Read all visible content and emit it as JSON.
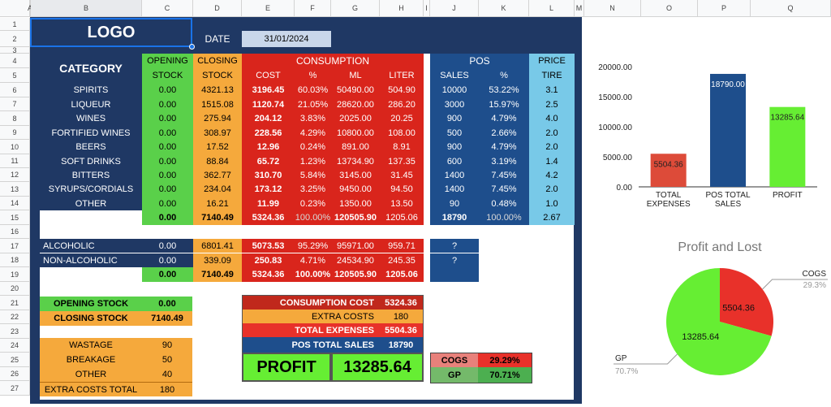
{
  "col_headers": [
    "A",
    "B",
    "C",
    "D",
    "E",
    "F",
    "G",
    "H",
    "I",
    "J",
    "K",
    "L",
    "M",
    "N",
    "O",
    "P",
    "Q"
  ],
  "row_headers": [
    "1",
    "2",
    "3",
    "4",
    "5",
    "6",
    "7",
    "8",
    "9",
    "10",
    "11",
    "12",
    "13",
    "14",
    "15",
    "16",
    "17",
    "18",
    "19",
    "20",
    "21",
    "22",
    "23",
    "24",
    "25",
    "26",
    "27"
  ],
  "header": {
    "logo": "LOGO",
    "date_label": "DATE",
    "date_value": "31/01/2024"
  },
  "table": {
    "h_category": "CATEGORY",
    "h_opening1": "OPENING",
    "h_opening2": "STOCK",
    "h_closing1": "CLOSING",
    "h_closing2": "STOCK",
    "h_consumption": "CONSUMPTION",
    "h_cost": "COST",
    "h_pct": "%",
    "h_ml": "ML",
    "h_liter": "LITER",
    "h_pos": "POS",
    "h_sales": "SALES",
    "h_pos_pct": "%",
    "h_price1": "PRICE",
    "h_price2": "TIRE",
    "rows": [
      {
        "cat": "SPIRITS",
        "open": "0.00",
        "close": "4321.13",
        "cost": "3196.45",
        "pct": "60.03%",
        "ml": "50490.00",
        "liter": "504.90",
        "sales": "10000",
        "spct": "53.22%",
        "price": "3.1"
      },
      {
        "cat": "LIQUEUR",
        "open": "0.00",
        "close": "1515.08",
        "cost": "1120.74",
        "pct": "21.05%",
        "ml": "28620.00",
        "liter": "286.20",
        "sales": "3000",
        "spct": "15.97%",
        "price": "2.5"
      },
      {
        "cat": "WINES",
        "open": "0.00",
        "close": "275.94",
        "cost": "204.12",
        "pct": "3.83%",
        "ml": "2025.00",
        "liter": "20.25",
        "sales": "900",
        "spct": "4.79%",
        "price": "4.0"
      },
      {
        "cat": "FORTIFIED WINES",
        "open": "0.00",
        "close": "308.97",
        "cost": "228.56",
        "pct": "4.29%",
        "ml": "10800.00",
        "liter": "108.00",
        "sales": "500",
        "spct": "2.66%",
        "price": "2.0"
      },
      {
        "cat": "BEERS",
        "open": "0.00",
        "close": "17.52",
        "cost": "12.96",
        "pct": "0.24%",
        "ml": "891.00",
        "liter": "8.91",
        "sales": "900",
        "spct": "4.79%",
        "price": "2.0"
      },
      {
        "cat": "SOFT DRINKS",
        "open": "0.00",
        "close": "88.84",
        "cost": "65.72",
        "pct": "1.23%",
        "ml": "13734.90",
        "liter": "137.35",
        "sales": "600",
        "spct": "3.19%",
        "price": "1.4"
      },
      {
        "cat": "BITTERS",
        "open": "0.00",
        "close": "362.77",
        "cost": "310.70",
        "pct": "5.84%",
        "ml": "3145.00",
        "liter": "31.45",
        "sales": "1400",
        "spct": "7.45%",
        "price": "4.2"
      },
      {
        "cat": "SYRUPS/CORDIALS",
        "open": "0.00",
        "close": "234.04",
        "cost": "173.12",
        "pct": "3.25%",
        "ml": "9450.00",
        "liter": "94.50",
        "sales": "1400",
        "spct": "7.45%",
        "price": "2.0"
      },
      {
        "cat": "OTHER",
        "open": "0.00",
        "close": "16.21",
        "cost": "11.99",
        "pct": "0.23%",
        "ml": "1350.00",
        "liter": "13.50",
        "sales": "90",
        "spct": "0.48%",
        "price": "1.0"
      }
    ],
    "totals": {
      "open": "0.00",
      "close": "7140.49",
      "cost": "5324.36",
      "pct": "100.00%",
      "ml": "120505.90",
      "liter": "1205.06",
      "sales": "18790",
      "spct": "100.00%",
      "price": "2.67"
    }
  },
  "alcohol": {
    "rows": [
      {
        "cat": "ALCOHOLIC",
        "open": "0.00",
        "close": "6801.41",
        "cost": "5073.53",
        "pct": "95.29%",
        "ml": "95971.00",
        "liter": "959.71",
        "pos": "?"
      },
      {
        "cat": "NON-ALCOHOLIC",
        "open": "0.00",
        "close": "339.09",
        "cost": "250.83",
        "pct": "4.71%",
        "ml": "24534.90",
        "liter": "245.35",
        "pos": "?"
      }
    ],
    "totals": {
      "open": "0.00",
      "close": "7140.49",
      "cost": "5324.36",
      "pct": "100.00%",
      "ml": "120505.90",
      "liter": "1205.06"
    }
  },
  "stock": {
    "opening_label": "OPENING STOCK",
    "opening": "0.00",
    "closing_label": "CLOSING STOCK",
    "closing": "7140.49"
  },
  "extra": {
    "wastage_label": "WASTAGE",
    "wastage": "90",
    "breakage_label": "BREAKAGE",
    "breakage": "50",
    "other_label": "OTHER",
    "other": "40",
    "total_label": "EXTRA COSTS TOTAL",
    "total": "180"
  },
  "summary": {
    "cons_label": "CONSUMPTION COST",
    "cons": "5324.36",
    "extra_label": "EXTRA COSTS",
    "extra": "180",
    "exp_label": "TOTAL EXPENSES",
    "exp": "5504.36",
    "pos_label": "POS TOTAL SALES",
    "pos": "18790",
    "profit_label": "PROFIT",
    "profit": "13285.64"
  },
  "ratios": {
    "cogs_label": "COGS",
    "cogs": "29.29%",
    "gp_label": "GP",
    "gp": "70.71%"
  },
  "colors": {
    "navy": "#1f3864",
    "green": "#5ad04a",
    "orange": "#f5a93c",
    "red": "#d9251c",
    "lightblue": "#78c9e8"
  },
  "chart_data": [
    {
      "type": "bar",
      "categories": [
        "TOTAL EXPENSES",
        "POS TOTAL SALES",
        "PROFIT"
      ],
      "values": [
        5504.36,
        18790,
        13285.64
      ],
      "data_labels": [
        "5504.36",
        "18790.00",
        "13285.64"
      ],
      "colors": [
        "#dd4b39",
        "#1e4e8c",
        "#66ee33"
      ],
      "ylim": [
        0,
        20000
      ],
      "yticks": [
        "0.00",
        "5000.00",
        "10000.00",
        "15000.00",
        "20000.00"
      ],
      "title": "",
      "xlabel": "",
      "ylabel": ""
    },
    {
      "type": "pie",
      "title": "Profit and Lost",
      "slices": [
        {
          "label": "COGS",
          "value": 5504.36,
          "pct": "29.3%",
          "color": "#e8312a"
        },
        {
          "label": "GP",
          "value": 13285.64,
          "pct": "70.7%",
          "color": "#66ee33"
        }
      ]
    }
  ]
}
